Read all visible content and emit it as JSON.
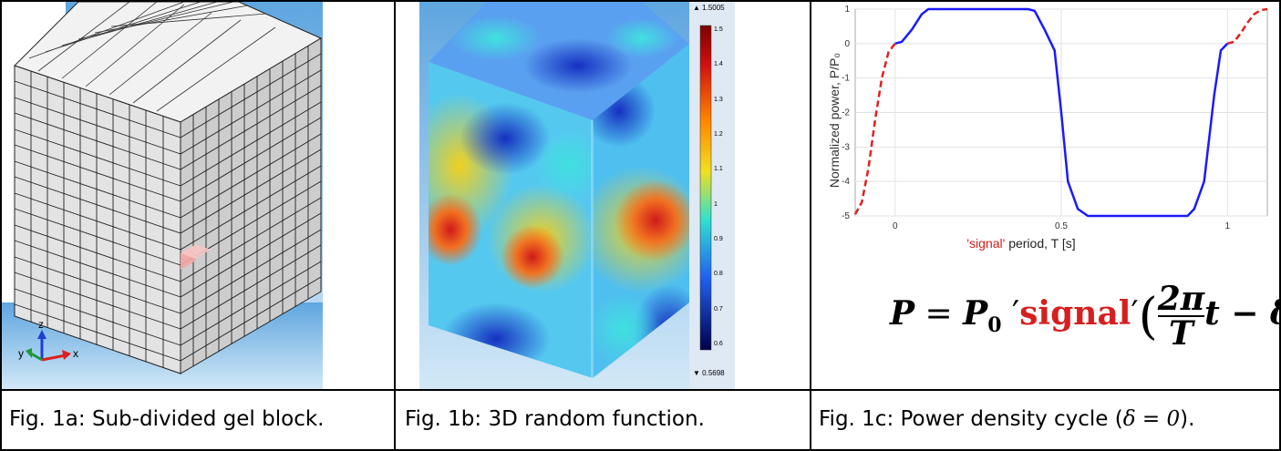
{
  "captions": {
    "a_prefix": "Fig. 1a: Sub-divided gel block.",
    "b_prefix": "Fig. 1b: 3D random function.",
    "c_text": "Fig. 1c: Power density cycle (",
    "c_delta": "δ = 0",
    "c_end": ")."
  },
  "axis_triad": {
    "z": "z",
    "y": "y",
    "x": "x"
  },
  "colorbar": {
    "max_label": "▲ 1.5005",
    "min_label": "▼ 0.5698",
    "ticks": [
      "1.5",
      "1.4",
      "1.3",
      "1.2",
      "1.1",
      "1",
      "0.9",
      "0.8",
      "0.7",
      "0.6"
    ]
  },
  "chart_data": {
    "type": "line",
    "ylabel": "Normalized power, P/P₀",
    "xlabel_signal": "'signal'",
    "xlabel_rest": " period, T [s]",
    "xlim": [
      -0.12,
      1.12
    ],
    "ylim": [
      -5,
      1
    ],
    "x_ticks": [
      "0",
      "0.5",
      "1"
    ],
    "y_ticks": [
      "1",
      "0",
      "-1",
      "-2",
      "-3",
      "-4",
      "-5"
    ],
    "grid": true,
    "series": [
      {
        "style": "solid",
        "color": "#1a1aff",
        "x": [
          0.0,
          0.02,
          0.05,
          0.08,
          0.1,
          0.2,
          0.3,
          0.4,
          0.42,
          0.45,
          0.48,
          0.5,
          0.52,
          0.55,
          0.58,
          0.6,
          0.7,
          0.8,
          0.88,
          0.9,
          0.93,
          0.96,
          0.98,
          1.0
        ],
        "y": [
          0.0,
          0.05,
          0.4,
          0.85,
          1.0,
          1.0,
          1.0,
          1.0,
          0.95,
          0.4,
          -0.2,
          -2.0,
          -4.0,
          -4.8,
          -5.0,
          -5.0,
          -5.0,
          -5.0,
          -5.0,
          -4.8,
          -4.0,
          -1.5,
          -0.2,
          0.0
        ]
      },
      {
        "style": "dashed",
        "color": "#e02020",
        "x": [
          -0.12,
          -0.1,
          -0.08,
          -0.06,
          -0.04,
          -0.02,
          0.0
        ],
        "y": [
          -4.95,
          -4.6,
          -3.6,
          -2.2,
          -1.0,
          -0.25,
          0.0
        ]
      },
      {
        "style": "dashed",
        "color": "#e02020",
        "x": [
          1.0,
          1.02,
          1.04,
          1.06,
          1.08,
          1.1,
          1.12
        ],
        "y": [
          0.0,
          0.05,
          0.3,
          0.6,
          0.85,
          0.97,
          1.0
        ]
      }
    ]
  },
  "equation": {
    "lhs": "P",
    "eq": " = ",
    "p0": "P",
    "sub0": "0",
    "q1": " ′",
    "signal": "signal",
    "q2": "′",
    "num": "2π",
    "den": "T",
    "rest": "t − δ"
  }
}
